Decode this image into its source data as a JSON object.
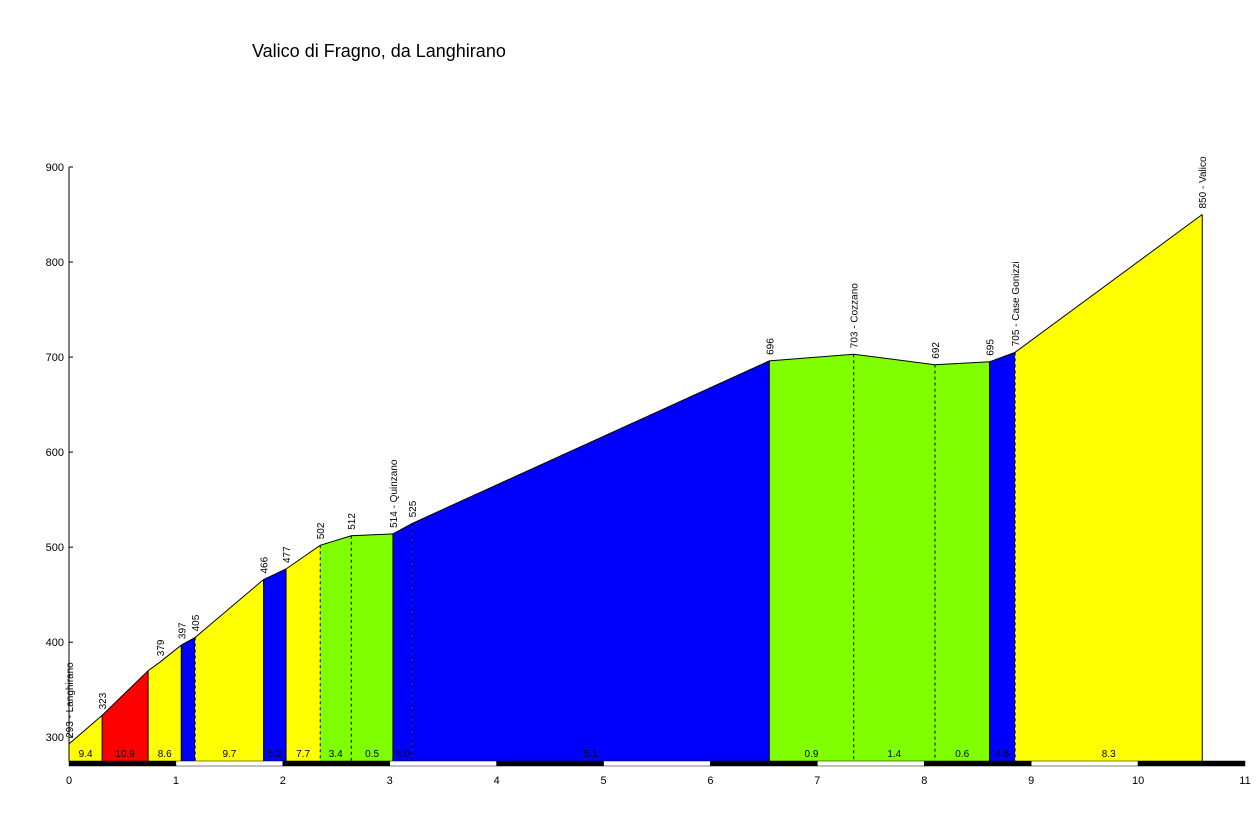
{
  "chart_data": {
    "type": "area",
    "title": "Valico di Fragno, da Langhirano",
    "xlabel": "",
    "ylabel": "",
    "xlim": [
      0,
      11
    ],
    "ylim": [
      275,
      900
    ],
    "x_ticks": [
      "0",
      "1",
      "2",
      "3",
      "4",
      "5",
      "6",
      "7",
      "8",
      "9",
      "10",
      "11"
    ],
    "y_ticks": [
      "300",
      "400",
      "500",
      "600",
      "700",
      "800",
      "900"
    ],
    "grid": false,
    "legend": "none",
    "points": [
      {
        "x": 0.0,
        "y": 293,
        "label": "293 - Langhirano"
      },
      {
        "x": 0.31,
        "y": 323,
        "label": "323"
      },
      {
        "x": 0.74,
        "y": 370,
        "label": ""
      },
      {
        "x": 0.85,
        "y": 379,
        "label": "379"
      },
      {
        "x": 1.05,
        "y": 397,
        "label": "397"
      },
      {
        "x": 1.18,
        "y": 405,
        "label": "405"
      },
      {
        "x": 1.82,
        "y": 466,
        "label": "466"
      },
      {
        "x": 2.03,
        "y": 477,
        "label": "477"
      },
      {
        "x": 2.35,
        "y": 502,
        "label": "502"
      },
      {
        "x": 2.64,
        "y": 512,
        "label": "512"
      },
      {
        "x": 3.03,
        "y": 514,
        "label": "514 - Quinzano"
      },
      {
        "x": 3.21,
        "y": 525,
        "label": "525"
      },
      {
        "x": 6.55,
        "y": 696,
        "label": "696"
      },
      {
        "x": 7.34,
        "y": 703,
        "label": "703 - Cozzano"
      },
      {
        "x": 8.1,
        "y": 692,
        "label": "692"
      },
      {
        "x": 8.61,
        "y": 695,
        "label": "695"
      },
      {
        "x": 8.85,
        "y": 705,
        "label": "705 - Case Gonizzi"
      },
      {
        "x": 10.6,
        "y": 850,
        "label": "850 - Valico"
      }
    ],
    "segments": [
      {
        "from": 0.0,
        "to": 0.31,
        "gradient": "9.4",
        "color": "#ffff00"
      },
      {
        "from": 0.31,
        "to": 0.74,
        "gradient": "10.9",
        "color": "#ff0000"
      },
      {
        "from": 0.74,
        "to": 1.05,
        "gradient": "8.6",
        "color": "#ffff00"
      },
      {
        "from": 1.05,
        "to": 1.18,
        "gradient": "",
        "color": "#0000ff"
      },
      {
        "from": 1.18,
        "to": 1.82,
        "gradient": "9.7",
        "color": "#ffff00"
      },
      {
        "from": 1.82,
        "to": 2.03,
        "gradient": "5.2",
        "color": "#0000ff"
      },
      {
        "from": 2.03,
        "to": 2.35,
        "gradient": "7.7",
        "color": "#ffff00"
      },
      {
        "from": 2.35,
        "to": 2.64,
        "gradient": "3.4",
        "color": "#80ff00"
      },
      {
        "from": 2.64,
        "to": 3.03,
        "gradient": "0.5",
        "color": "#80ff00"
      },
      {
        "from": 3.03,
        "to": 3.21,
        "gradient": "6.0",
        "color": "#0000ff"
      },
      {
        "from": 3.21,
        "to": 6.55,
        "gradient": "5.1",
        "color": "#0000ff"
      },
      {
        "from": 6.55,
        "to": 7.34,
        "gradient": "0.9",
        "color": "#80ff00"
      },
      {
        "from": 7.34,
        "to": 8.1,
        "gradient": "1.4",
        "color": "#80ff00"
      },
      {
        "from": 8.1,
        "to": 8.61,
        "gradient": "0.6",
        "color": "#80ff00"
      },
      {
        "from": 8.61,
        "to": 8.85,
        "gradient": "4.6",
        "color": "#0000ff"
      },
      {
        "from": 8.85,
        "to": 10.6,
        "gradient": "8.3",
        "color": "#ffff00"
      }
    ],
    "dashed_markers": [
      0.85,
      1.18,
      2.35,
      2.64,
      3.21,
      7.34,
      8.1,
      8.85
    ]
  }
}
